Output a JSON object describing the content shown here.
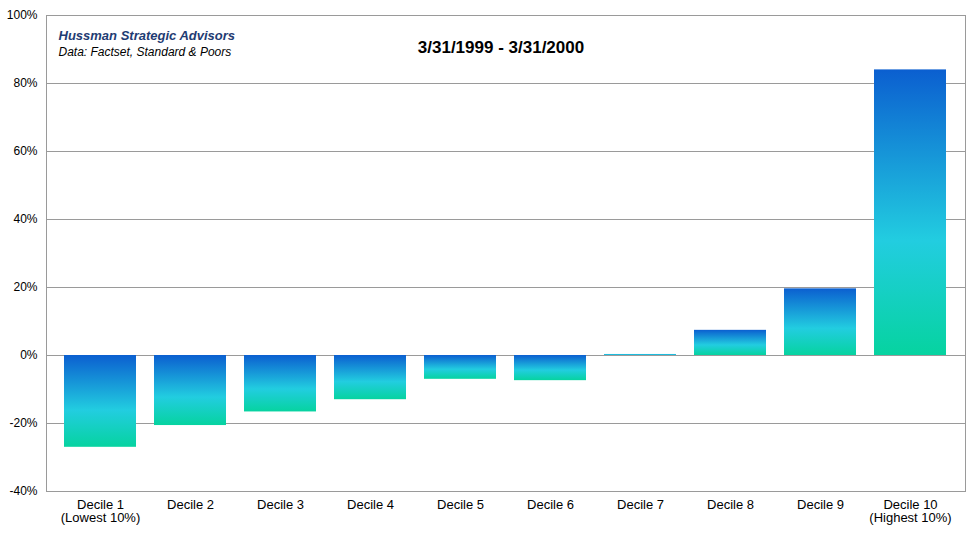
{
  "chart_data": {
    "type": "bar",
    "title": "3/31/1999 - 3/31/2000",
    "annotations": [
      "Hussman Strategic Advisors",
      "Data: Factset, Standard & Poors"
    ],
    "categories": [
      "Decile 1\n(Lowest 10%)",
      "Decile 2",
      "Decile 3",
      "Decile 4",
      "Decile 5",
      "Decile 6",
      "Decile 7",
      "Decile 8",
      "Decile 9",
      "Decile 10\n(Highest 10%)"
    ],
    "values": [
      -27,
      -20.6,
      -16.6,
      -13,
      -7,
      -7.4,
      0.3,
      7.4,
      19.6,
      84
    ],
    "color": "#0b5fd0",
    "ylim": [
      -40,
      100
    ],
    "yticks": [
      {
        "value": -40,
        "label": "-40%"
      },
      {
        "value": -20,
        "label": "-20%"
      },
      {
        "value": 0,
        "label": "0%"
      },
      {
        "value": 20,
        "label": "20%"
      },
      {
        "value": 40,
        "label": "40%"
      },
      {
        "value": 60,
        "label": "60%"
      },
      {
        "value": 80,
        "label": "80%"
      },
      {
        "value": 100,
        "label": "100%"
      }
    ],
    "grid": true
  }
}
